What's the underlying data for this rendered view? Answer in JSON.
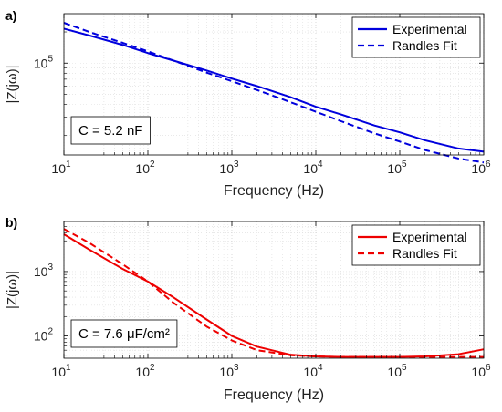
{
  "chart_data": [
    {
      "panel_label": "a)",
      "type": "line",
      "scale": {
        "x": "log",
        "y": "log"
      },
      "xlim": [
        10,
        1000000
      ],
      "ylim": [
        13000,
        300000
      ],
      "xlabel": "Frequency (Hz)",
      "ylabel": "|Z(jω)|",
      "x_ticks": [
        10,
        100,
        1000,
        10000,
        100000,
        1000000
      ],
      "x_tick_labels": [
        {
          "base": "10",
          "exp": "1"
        },
        {
          "base": "10",
          "exp": "2"
        },
        {
          "base": "10",
          "exp": "3"
        },
        {
          "base": "10",
          "exp": "4"
        },
        {
          "base": "10",
          "exp": "5"
        },
        {
          "base": "10",
          "exp": "6"
        }
      ],
      "y_ticks": [
        100000
      ],
      "y_tick_labels": [
        {
          "base": "10",
          "exp": "5"
        }
      ],
      "grid": true,
      "minor_grid": true,
      "legend_position": "top-right",
      "annotation": {
        "text": "C =  5.2 nF",
        "position": "bottom-left"
      },
      "series": [
        {
          "name": "Experimental",
          "color": "#0000dd",
          "style": "solid",
          "x": [
            10,
            20,
            50,
            100,
            200,
            500,
            1000,
            2000,
            5000,
            10000,
            20000,
            50000,
            100000,
            200000,
            500000,
            1000000
          ],
          "y": [
            215000,
            185000,
            150000,
            125000,
            106000,
            85000,
            71000,
            60000,
            47000,
            38000,
            32000,
            25000,
            21500,
            18000,
            15000,
            14000
          ]
        },
        {
          "name": "Randles Fit",
          "color": "#0000dd",
          "style": "dashed",
          "x": [
            10,
            20,
            50,
            100,
            200,
            500,
            1000,
            2000,
            5000,
            10000,
            20000,
            50000,
            100000,
            200000,
            500000,
            1000000
          ],
          "y": [
            245000,
            200000,
            157000,
            130000,
            106000,
            81000,
            67000,
            55000,
            42000,
            34000,
            27500,
            21000,
            17500,
            14500,
            12000,
            11000
          ]
        }
      ]
    },
    {
      "panel_label": "b)",
      "type": "line",
      "scale": {
        "x": "log",
        "y": "log"
      },
      "xlim": [
        10,
        1000000
      ],
      "ylim": [
        45,
        6000
      ],
      "xlabel": "Frequency (Hz)",
      "ylabel": "|Z(jω)|",
      "x_ticks": [
        10,
        100,
        1000,
        10000,
        100000,
        1000000
      ],
      "x_tick_labels": [
        {
          "base": "10",
          "exp": "1"
        },
        {
          "base": "10",
          "exp": "2"
        },
        {
          "base": "10",
          "exp": "3"
        },
        {
          "base": "10",
          "exp": "4"
        },
        {
          "base": "10",
          "exp": "5"
        },
        {
          "base": "10",
          "exp": "6"
        }
      ],
      "y_ticks": [
        100,
        1000
      ],
      "y_tick_labels": [
        {
          "base": "10",
          "exp": "2"
        },
        {
          "base": "10",
          "exp": "3"
        }
      ],
      "grid": true,
      "minor_grid": true,
      "legend_position": "top-right",
      "annotation": {
        "text": "C =  7.6 μF/cm²",
        "position": "bottom-left"
      },
      "series": [
        {
          "name": "Experimental",
          "color": "#ee0000",
          "style": "solid",
          "x": [
            10,
            20,
            50,
            100,
            200,
            500,
            1000,
            2000,
            5000,
            10000,
            20000,
            50000,
            100000,
            200000,
            500000,
            1000000
          ],
          "y": [
            3800,
            2200,
            1100,
            700,
            400,
            180,
            100,
            68,
            51,
            48,
            47,
            47,
            47,
            48,
            52,
            62
          ]
        },
        {
          "name": "Randles Fit",
          "color": "#ee0000",
          "style": "dashed",
          "x": [
            10,
            20,
            50,
            100,
            200,
            500,
            1000,
            2000,
            5000,
            10000,
            20000,
            50000,
            100000,
            200000,
            500000,
            1000000
          ],
          "y": [
            4600,
            2800,
            1300,
            700,
            330,
            140,
            85,
            60,
            50,
            48,
            47,
            47,
            47,
            47,
            47,
            47
          ]
        }
      ]
    }
  ]
}
